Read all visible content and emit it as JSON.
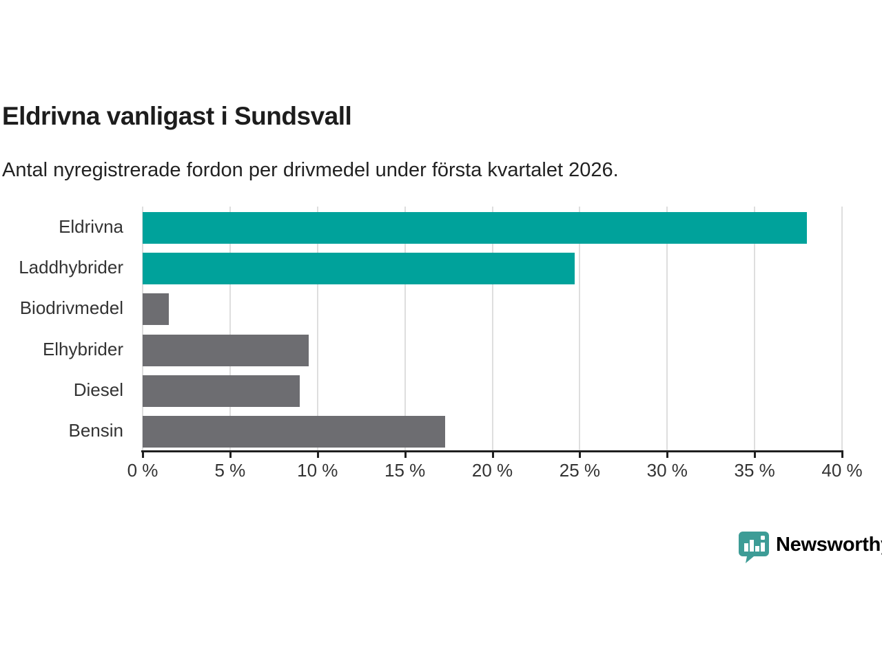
{
  "header": {
    "title": "Eldrivna vanligast i Sundsvall",
    "subtitle": "Antal nyregistrerade fordon per drivmedel under första kvartalet 2026."
  },
  "chart_data": {
    "type": "bar",
    "orientation": "horizontal",
    "title": "Eldrivna vanligast i Sundsvall",
    "subtitle": "Antal nyregistrerade fordon per drivmedel under första kvartalet 2026.",
    "categories": [
      "Eldrivna",
      "Laddhybrider",
      "Biodrivmedel",
      "Elhybrider",
      "Diesel",
      "Bensin"
    ],
    "values": [
      38.0,
      24.7,
      1.5,
      9.5,
      9.0,
      17.3
    ],
    "unit": "%",
    "xlabel": "",
    "ylabel": "",
    "xlim": [
      0,
      40
    ],
    "xticks": [
      0,
      5,
      10,
      15,
      20,
      25,
      30,
      35,
      40
    ],
    "xtick_labels": [
      "0 %",
      "5 %",
      "10 %",
      "15 %",
      "20 %",
      "25 %",
      "30 %",
      "35 %",
      "40 %"
    ],
    "grid": true,
    "legend": "none",
    "bar_colors": [
      "#00a29b",
      "#00a29b",
      "#6d6d71",
      "#6d6d71",
      "#6d6d71",
      "#6d6d71"
    ],
    "colors": {
      "highlight": "#00a29b",
      "default_bar": "#6d6d71",
      "gridline": "#dedede",
      "axis": "#1f1f1f",
      "label_text": "#333333"
    }
  },
  "branding": {
    "logo_text": "Newsworthy",
    "logo_color": "#3d9c96",
    "logo_icon": "newsworthy-speech-bubble-chart-icon"
  }
}
